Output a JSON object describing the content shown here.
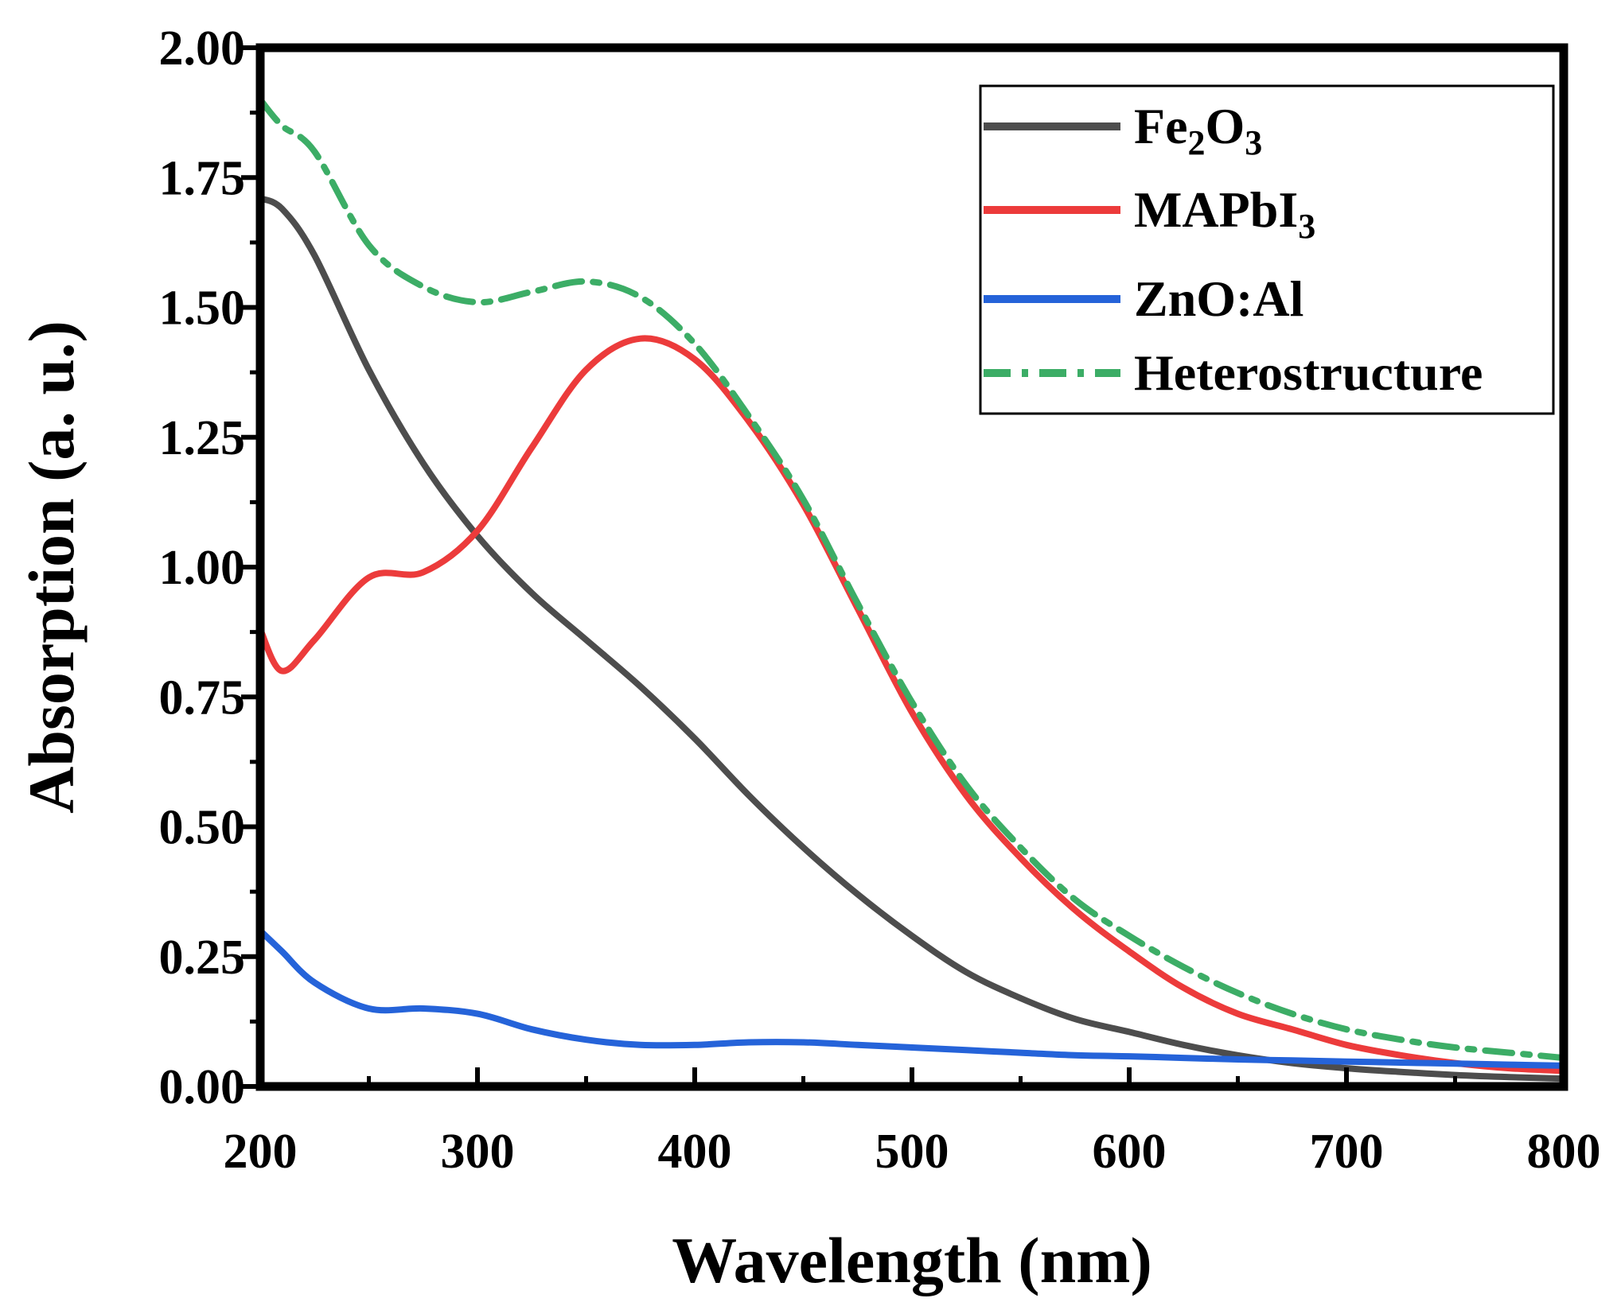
{
  "chart_data": {
    "type": "line",
    "title": "",
    "xlabel": "Wavelength (nm)",
    "ylabel": "Absorption (a. u.)",
    "xlim": [
      200,
      800
    ],
    "ylim": [
      0,
      2
    ],
    "xticks": [
      200,
      300,
      400,
      500,
      600,
      700,
      800
    ],
    "xtick_labels": [
      "200",
      "300",
      "400",
      "500",
      "600",
      "700",
      "800"
    ],
    "yticks": [
      0,
      0.25,
      0.5,
      0.75,
      1.0,
      1.25,
      1.5,
      1.75,
      2.0
    ],
    "ytick_labels": [
      "0.00",
      "0.25",
      "0.50",
      "0.75",
      "1.00",
      "1.25",
      "1.50",
      "1.75",
      "2.00"
    ],
    "grid": false,
    "legend_position": "top-right",
    "x": [
      200,
      210,
      225,
      250,
      275,
      300,
      325,
      350,
      375,
      400,
      425,
      450,
      475,
      500,
      525,
      550,
      575,
      600,
      625,
      650,
      675,
      700,
      725,
      750,
      775,
      800
    ],
    "series": [
      {
        "name": "Fe2O3",
        "legend_main": "Fe",
        "legend_sub1": "2",
        "legend_mid": "O",
        "legend_sub2": "3",
        "color": "#4d4d4d",
        "style": "solid",
        "values": [
          1.71,
          1.69,
          1.6,
          1.38,
          1.2,
          1.06,
          0.95,
          0.86,
          0.77,
          0.67,
          0.56,
          0.46,
          0.37,
          0.29,
          0.22,
          0.17,
          0.13,
          0.105,
          0.08,
          0.06,
          0.045,
          0.035,
          0.028,
          0.022,
          0.018,
          0.015
        ]
      },
      {
        "name": "MAPbI3",
        "legend_main": "MAPbI",
        "legend_sub1": "3",
        "color": "#ec3b3b",
        "style": "solid",
        "values": [
          0.88,
          0.8,
          0.86,
          0.98,
          0.99,
          1.07,
          1.23,
          1.38,
          1.44,
          1.4,
          1.28,
          1.12,
          0.92,
          0.72,
          0.56,
          0.44,
          0.34,
          0.26,
          0.19,
          0.14,
          0.11,
          0.08,
          0.06,
          0.045,
          0.035,
          0.03
        ]
      },
      {
        "name": "ZnO:Al",
        "legend_main": "ZnO:Al",
        "color": "#2563d9",
        "style": "solid",
        "values": [
          0.3,
          0.26,
          0.2,
          0.15,
          0.15,
          0.14,
          0.11,
          0.09,
          0.08,
          0.08,
          0.085,
          0.085,
          0.08,
          0.075,
          0.07,
          0.065,
          0.06,
          0.058,
          0.055,
          0.052,
          0.05,
          0.048,
          0.046,
          0.044,
          0.042,
          0.04
        ]
      },
      {
        "name": "Heterostructure",
        "legend_main": "Heterostructure",
        "color": "#3cad66",
        "style": "dashdot",
        "values": [
          1.9,
          1.85,
          1.8,
          1.62,
          1.54,
          1.51,
          1.53,
          1.55,
          1.52,
          1.43,
          1.29,
          1.13,
          0.93,
          0.74,
          0.58,
          0.46,
          0.36,
          0.29,
          0.23,
          0.18,
          0.14,
          0.11,
          0.09,
          0.075,
          0.065,
          0.055
        ]
      }
    ]
  }
}
